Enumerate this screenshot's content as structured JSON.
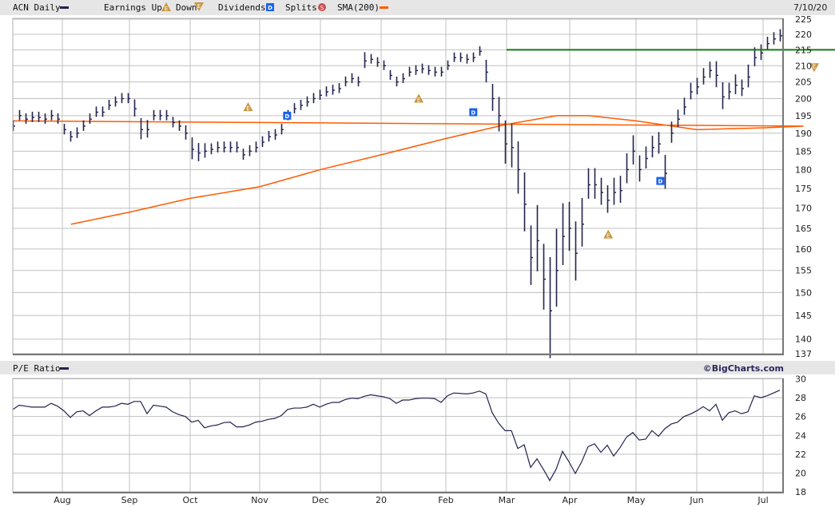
{
  "header": {
    "symbol_label": "ACN Daily",
    "earnings_label": "Earnings Up",
    "down_label": "Down",
    "dividends_label": "Dividends",
    "splits_label": "Splits",
    "sma_label": "SMA(200)",
    "date": "7/10/20",
    "pe_label": "P/E Ratio",
    "brand": "©BigCharts.com"
  },
  "colors": {
    "bars": "#23234f",
    "sma": "#ff5a00",
    "resistance": "#127a12",
    "earnings": "#c89640",
    "dividend": "#1a62f0",
    "split": "#c85050",
    "grid": "#c0c0c0",
    "header_bg": "#e6e6e6"
  },
  "chart_data": [
    {
      "type": "bar",
      "subtype": "ohlc-daily",
      "title": "ACN Daily",
      "x_range": [
        "2019-07-05",
        "2020-07-10"
      ],
      "x_ticks": [
        "Aug",
        "Sep",
        "Oct",
        "Nov",
        "Dec",
        "20",
        "Feb",
        "Mar",
        "Apr",
        "May",
        "Jun",
        "Jul"
      ],
      "y_scale": "log",
      "ylim": [
        137,
        225
      ],
      "y_ticks": [
        225,
        220,
        215,
        210,
        205,
        200,
        195,
        190,
        185,
        180,
        175,
        170,
        165,
        160,
        155,
        150,
        145,
        140,
        137
      ],
      "grid": true,
      "close": [
        192,
        195,
        194,
        194.5,
        194.5,
        194,
        195,
        194,
        191,
        189,
        190,
        192,
        194,
        196,
        196,
        198,
        199,
        200,
        200,
        197,
        191,
        191,
        195,
        195,
        195,
        193,
        192,
        190,
        185.5,
        184.5,
        185,
        185.5,
        186,
        186,
        186,
        186,
        184,
        185,
        186,
        187.5,
        189,
        189.5,
        191,
        195,
        197,
        198,
        199,
        200,
        201,
        202,
        202.5,
        203,
        205,
        206,
        205,
        211.5,
        212,
        211,
        210,
        207,
        205,
        206,
        208,
        208.5,
        209,
        208.5,
        208,
        208,
        210,
        212.5,
        212.5,
        212,
        212.5,
        214.5,
        208,
        200,
        195,
        187,
        186,
        180,
        171,
        158,
        162,
        153,
        146,
        155,
        163,
        165,
        159,
        166,
        176,
        176,
        174,
        172,
        174,
        174.5,
        180,
        185,
        180,
        183,
        186,
        187,
        179,
        190,
        194,
        197.5,
        202,
        203.5,
        206.5,
        208.5,
        207,
        200.5,
        202,
        204,
        203,
        206.5,
        212.5,
        214,
        217,
        218.5,
        219.5
      ],
      "daily_range": [
        3,
        3,
        3,
        3,
        3,
        3,
        3,
        3,
        3,
        3,
        3,
        3,
        3,
        3,
        3,
        3,
        3,
        3,
        3,
        5,
        6,
        5,
        3,
        3,
        3,
        3,
        3,
        4,
        6,
        5,
        4,
        3,
        3,
        3,
        3,
        3,
        3,
        3,
        3,
        3,
        3,
        3,
        3,
        3,
        3,
        3,
        3,
        3,
        3,
        3,
        3,
        3,
        3,
        3,
        3,
        5,
        3,
        3,
        3,
        3,
        3,
        3,
        3,
        3,
        3,
        3,
        3,
        3,
        3,
        3,
        3,
        3,
        3,
        3,
        7,
        8,
        10,
        12,
        12,
        14,
        15,
        14,
        16,
        15,
        22,
        18,
        15,
        12,
        14,
        12,
        8,
        8,
        7,
        7,
        7,
        7,
        8,
        8,
        7,
        6,
        6,
        6,
        9,
        6,
        5,
        5,
        5,
        5,
        5,
        5,
        8,
        8,
        5,
        6,
        5,
        7,
        6,
        5,
        4,
        4,
        4
      ],
      "sma200": [
        [
          "2019-07-05",
          166
        ],
        [
          "2019-08-01",
          169
        ],
        [
          "2019-09-01",
          172.5
        ],
        [
          "2019-10-01",
          175.5
        ],
        [
          "2019-11-01",
          180
        ],
        [
          "2019-12-01",
          184
        ],
        [
          "2020-01-01",
          188.5
        ],
        [
          "2020-02-01",
          192.5
        ],
        [
          "2020-02-24",
          195
        ],
        [
          "2020-03-10",
          195
        ],
        [
          "2020-04-01",
          193.5
        ],
        [
          "2020-05-01",
          191
        ],
        [
          "2020-06-01",
          191.5
        ],
        [
          "2020-06-20",
          192
        ],
        [
          "2020-07-10",
          193.5
        ]
      ],
      "resistance_line": {
        "value": 215,
        "from": "2020-02-01"
      },
      "events": [
        {
          "type": "earnings_up",
          "date": "2019-09-26",
          "price": 197.5
        },
        {
          "type": "earnings_up",
          "date": "2019-12-19",
          "price": 200
        },
        {
          "type": "earnings_up",
          "date": "2020-03-19",
          "price": 163.5
        },
        {
          "type": "earnings_down",
          "date": "2020-06-25",
          "price": 209.5
        },
        {
          "type": "dividend",
          "date": "2019-10-15",
          "price": 195
        },
        {
          "type": "dividend",
          "date": "2020-01-15",
          "price": 196
        },
        {
          "type": "dividend",
          "date": "2020-04-13",
          "price": 177
        }
      ]
    },
    {
      "type": "line",
      "title": "P/E Ratio",
      "x_range": [
        "2019-07-05",
        "2020-07-10"
      ],
      "ylim": [
        18,
        30
      ],
      "y_ticks": [
        30,
        28,
        26,
        24,
        22,
        20,
        18
      ],
      "grid": true,
      "values": [
        26.75,
        27.2,
        27.1,
        27.0,
        27.0,
        27.0,
        27.4,
        27.1,
        26.6,
        25.9,
        26.5,
        26.6,
        26.1,
        26.6,
        27.0,
        27.0,
        27.1,
        27.4,
        27.3,
        27.6,
        27.6,
        26.3,
        27.2,
        27.1,
        27.0,
        26.5,
        26.2,
        26.0,
        25.4,
        25.6,
        24.8,
        25.0,
        25.1,
        25.35,
        25.4,
        24.9,
        24.9,
        25.1,
        25.4,
        25.5,
        25.7,
        25.8,
        26.1,
        26.75,
        26.9,
        26.9,
        27.0,
        27.3,
        27.0,
        27.3,
        27.5,
        27.5,
        27.8,
        27.95,
        27.9,
        28.15,
        28.3,
        28.2,
        28.1,
        27.9,
        27.4,
        27.75,
        27.75,
        27.9,
        27.95,
        27.95,
        27.9,
        27.5,
        28.2,
        28.5,
        28.45,
        28.4,
        28.5,
        28.7,
        28.4,
        26.4,
        25.3,
        24.5,
        24.5,
        22.6,
        23.0,
        20.6,
        21.5,
        20.4,
        19.2,
        20.4,
        22.3,
        21.2,
        19.95,
        21.2,
        22.8,
        23.1,
        22.2,
        22.95,
        21.8,
        22.7,
        23.8,
        24.3,
        23.5,
        23.6,
        24.5,
        23.9,
        24.7,
        25.2,
        25.4,
        26.0,
        26.25,
        26.6,
        27.05,
        26.6,
        27.3,
        25.6,
        26.4,
        26.6,
        26.3,
        26.5,
        28.2,
        28.0,
        28.2,
        28.5,
        28.8
      ]
    }
  ]
}
